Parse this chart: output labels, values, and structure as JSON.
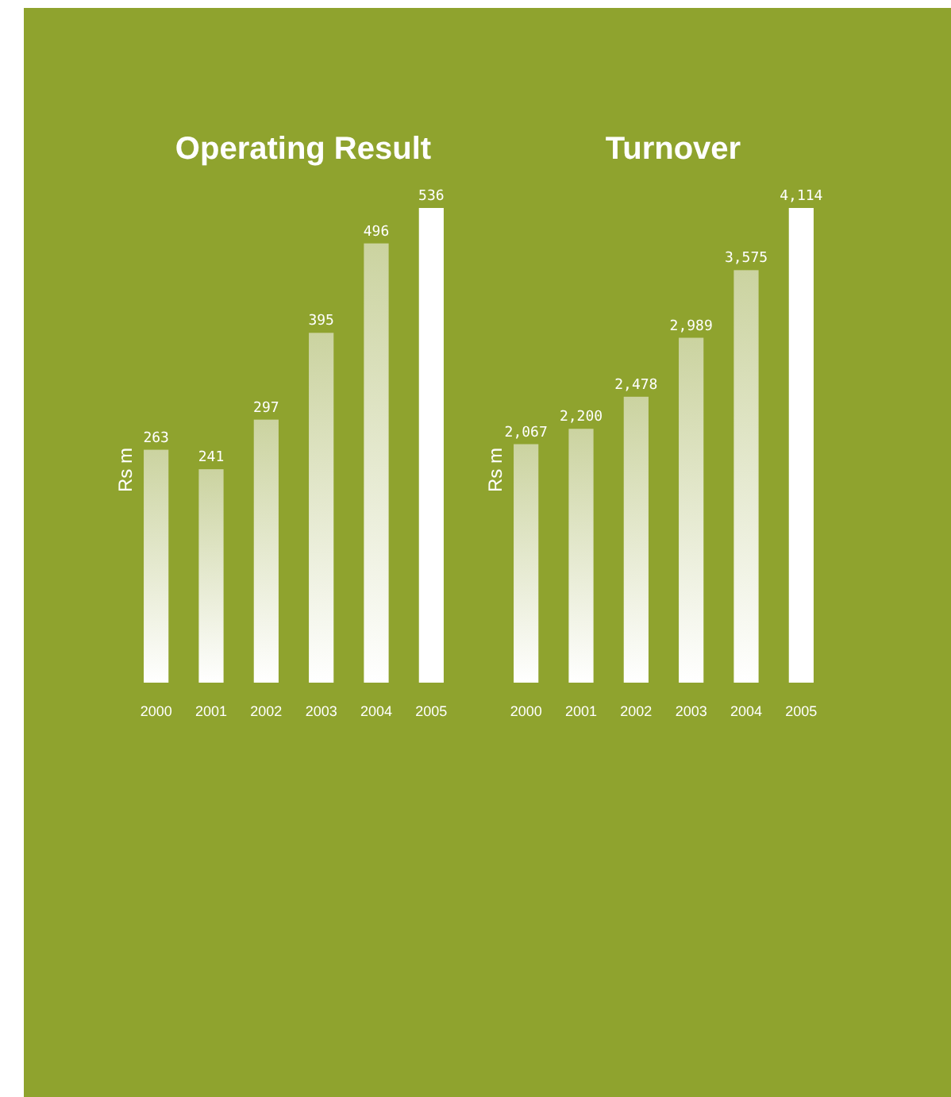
{
  "chart_data": [
    {
      "type": "bar",
      "title": "Operating Result",
      "ylabel": "Rs m",
      "categories": [
        "2000",
        "2001",
        "2002",
        "2003",
        "2004",
        "2005"
      ],
      "values": [
        263,
        241,
        297,
        395,
        496,
        536
      ],
      "colors": [
        "#cbd3a0",
        "#cbd3a0",
        "#cbd3a0",
        "#cbd3a0",
        "#cbd3a0",
        "#ffffff"
      ],
      "data_labels": true
    },
    {
      "type": "bar",
      "title": "Turnover",
      "ylabel": "Rs m",
      "categories": [
        "2000",
        "2001",
        "2002",
        "2003",
        "2004",
        "2005"
      ],
      "values": [
        2067,
        2200,
        2478,
        2989,
        3575,
        4114
      ],
      "value_labels": [
        "2,067",
        "2,200",
        "2,478",
        "2,989",
        "3,575",
        "4,114"
      ],
      "colors": [
        "#cbd3a0",
        "#cbd3a0",
        "#cbd3a0",
        "#cbd3a0",
        "#cbd3a0",
        "#ffffff"
      ]
    }
  ]
}
